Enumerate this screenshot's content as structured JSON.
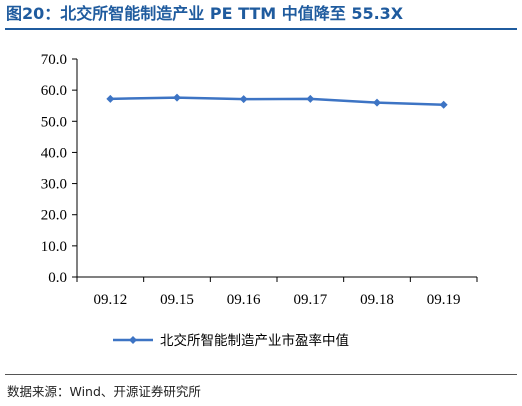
{
  "figure": {
    "title": "图20：北交所智能制造产业 PE TTM 中值降至 55.3X",
    "source": "数据来源：Wind、开源证券研究所"
  },
  "colors": {
    "title": "#1f5b9e",
    "series": "#3d74c4",
    "axis": "#000000"
  },
  "chart_data": {
    "type": "line",
    "title": "",
    "xlabel": "",
    "ylabel": "",
    "categories": [
      "09.12",
      "09.15",
      "09.16",
      "09.17",
      "09.18",
      "09.19"
    ],
    "series": [
      {
        "name": "北交所智能制造产业市盈率中值",
        "values": [
          57.2,
          57.6,
          57.1,
          57.2,
          56.0,
          55.3
        ]
      }
    ],
    "ylim": [
      0,
      70
    ],
    "yticks": [
      0,
      10,
      20,
      30,
      40,
      50,
      60,
      70
    ],
    "ytick_labels": [
      "0.0",
      "10.0",
      "20.0",
      "30.0",
      "40.0",
      "50.0",
      "60.0",
      "70.0"
    ],
    "grid": false,
    "legend_position": "bottom"
  }
}
